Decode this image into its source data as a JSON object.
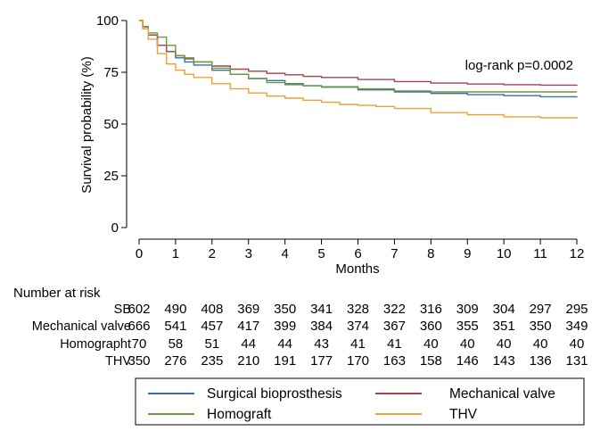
{
  "chart_data": {
    "type": "line",
    "title": "",
    "xlabel": "Months",
    "ylabel": "Survival probability (%)",
    "xlim": [
      0,
      12
    ],
    "ylim": [
      0,
      100
    ],
    "xticks": [
      0,
      1,
      2,
      3,
      4,
      5,
      6,
      7,
      8,
      9,
      10,
      11,
      12
    ],
    "yticks": [
      0,
      25,
      50,
      75,
      100
    ],
    "grid": false,
    "annotation": "log-rank p=0.0002",
    "legend_position": "bottom",
    "series": [
      {
        "name": "Surgical bioprosthesis",
        "color": "#3a6ea5",
        "x": [
          0,
          0.1,
          0.25,
          0.5,
          0.75,
          1,
          1.25,
          1.5,
          2,
          2.5,
          3,
          3.5,
          4,
          4.5,
          5,
          6,
          7,
          8,
          9,
          10,
          11,
          12
        ],
        "y": [
          100,
          97,
          93,
          88,
          85,
          82,
          80,
          78.5,
          76,
          74,
          72,
          71,
          69.5,
          68.5,
          67.8,
          66.5,
          65.5,
          64.8,
          64.2,
          63.7,
          63.2,
          62.8
        ]
      },
      {
        "name": "Mechanical valve",
        "color": "#a3434f",
        "x": [
          0,
          0.1,
          0.25,
          0.5,
          0.75,
          1,
          1.25,
          1.5,
          2,
          2.5,
          3,
          3.5,
          4,
          4.5,
          5,
          6,
          7,
          8,
          9,
          10,
          11,
          12
        ],
        "y": [
          100,
          97,
          93,
          88,
          85,
          83,
          81.5,
          80,
          78,
          76.5,
          75.5,
          74.5,
          73.8,
          73,
          72.5,
          71.5,
          70.5,
          69.8,
          69.3,
          69,
          68.8,
          68.5
        ]
      },
      {
        "name": "Homograft",
        "color": "#6a9a3a",
        "x": [
          0,
          0.1,
          0.25,
          0.5,
          0.75,
          1,
          1.25,
          1.5,
          2,
          2.5,
          3,
          3.5,
          4,
          4.5,
          5,
          6,
          7,
          8,
          9,
          10,
          11,
          12
        ],
        "y": [
          100,
          97,
          94,
          92,
          88,
          83,
          82,
          80,
          77,
          74,
          72,
          70,
          69,
          68.5,
          68,
          67,
          66,
          65.5,
          65.5,
          65.5,
          65.5,
          65.5
        ]
      },
      {
        "name": "THV",
        "color": "#f0a030",
        "x": [
          0,
          0.1,
          0.25,
          0.5,
          0.75,
          1,
          1.25,
          1.5,
          2,
          2.5,
          3,
          3.5,
          4,
          4.5,
          5,
          5.5,
          6,
          6.5,
          7,
          8,
          9,
          10,
          11,
          12
        ],
        "y": [
          100,
          96,
          91,
          84,
          79,
          76,
          74,
          72.5,
          69.5,
          67,
          65,
          63.5,
          62.5,
          61.5,
          60.5,
          59.5,
          59,
          58.5,
          57.5,
          55.5,
          54.5,
          53.5,
          53,
          52.5
        ]
      }
    ],
    "risk_table": {
      "title": "Number at risk",
      "rows": [
        {
          "label": "SB",
          "values": [
            "602",
            "490",
            "408",
            "369",
            "350",
            "341",
            "328",
            "322",
            "316",
            "309",
            "304",
            "297",
            "295"
          ]
        },
        {
          "label": "Mechanical valve",
          "values": [
            "666",
            "541",
            "457",
            "417",
            "399",
            "384",
            "374",
            "367",
            "360",
            "355",
            "351",
            "350",
            "349"
          ]
        },
        {
          "label": "Homographt",
          "values": [
            "70",
            "58",
            "51",
            "44",
            "44",
            "43",
            "41",
            "41",
            "40",
            "40",
            "40",
            "40",
            "40"
          ]
        },
        {
          "label": "THV",
          "values": [
            "350",
            "276",
            "235",
            "210",
            "191",
            "177",
            "170",
            "163",
            "158",
            "146",
            "143",
            "136",
            "131"
          ]
        }
      ]
    }
  }
}
